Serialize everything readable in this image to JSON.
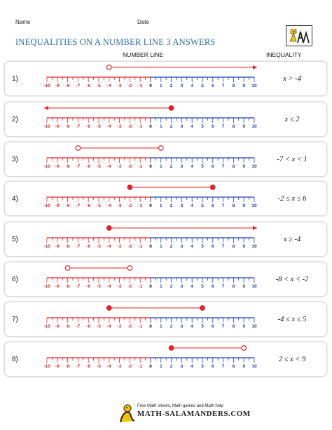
{
  "header": {
    "name_label": "Name",
    "date_label": "Date",
    "title": "INEQUALITIES ON A NUMBER LINE 3 ANSWERS",
    "col_number_line": "NUMBER LINE",
    "col_inequality": "INEQUALITY"
  },
  "number_line": {
    "ticks": [
      -10,
      -9,
      -8,
      -7,
      -6,
      -5,
      -4,
      -3,
      -2,
      -1,
      0,
      1,
      2,
      3,
      4,
      5,
      6,
      7,
      8,
      9,
      10
    ],
    "negative_color": "#e0252a",
    "positive_color": "#1f3fb8"
  },
  "rows": [
    {
      "num": "1)",
      "inequality": "x > -4",
      "start": -4,
      "start_closed": false,
      "end": 10,
      "end_type": "arrow"
    },
    {
      "num": "2)",
      "inequality": "x ≤ 2",
      "start": 2,
      "start_closed": true,
      "end": -10,
      "end_type": "arrow"
    },
    {
      "num": "3)",
      "inequality": "-7 < x < 1",
      "start": -7,
      "start_closed": false,
      "end": 1,
      "end_type": "open"
    },
    {
      "num": "4)",
      "inequality": "-2 ≤ x ≤ 6",
      "start": -2,
      "start_closed": true,
      "end": 6,
      "end_type": "closed"
    },
    {
      "num": "5)",
      "inequality": "x ≥ -4",
      "start": -4,
      "start_closed": true,
      "end": 10,
      "end_type": "arrow"
    },
    {
      "num": "6)",
      "inequality": "-8 < x < -2",
      "start": -8,
      "start_closed": false,
      "end": -2,
      "end_type": "open"
    },
    {
      "num": "7)",
      "inequality": "-4 ≤ x ≤ 5",
      "start": -4,
      "start_closed": true,
      "end": 5,
      "end_type": "closed"
    },
    {
      "num": "8)",
      "inequality": "2 ≤ x < 9",
      "start": 2,
      "start_closed": true,
      "end": 9,
      "end_type": "open"
    }
  ],
  "footer": {
    "tagline": "Free Math sheets, Math games and Math help",
    "brand": "MATH-SALAMANDERS.COM"
  },
  "icons": {
    "logo": "salamander-logo-icon",
    "footer_logo": "salamander-icon"
  }
}
